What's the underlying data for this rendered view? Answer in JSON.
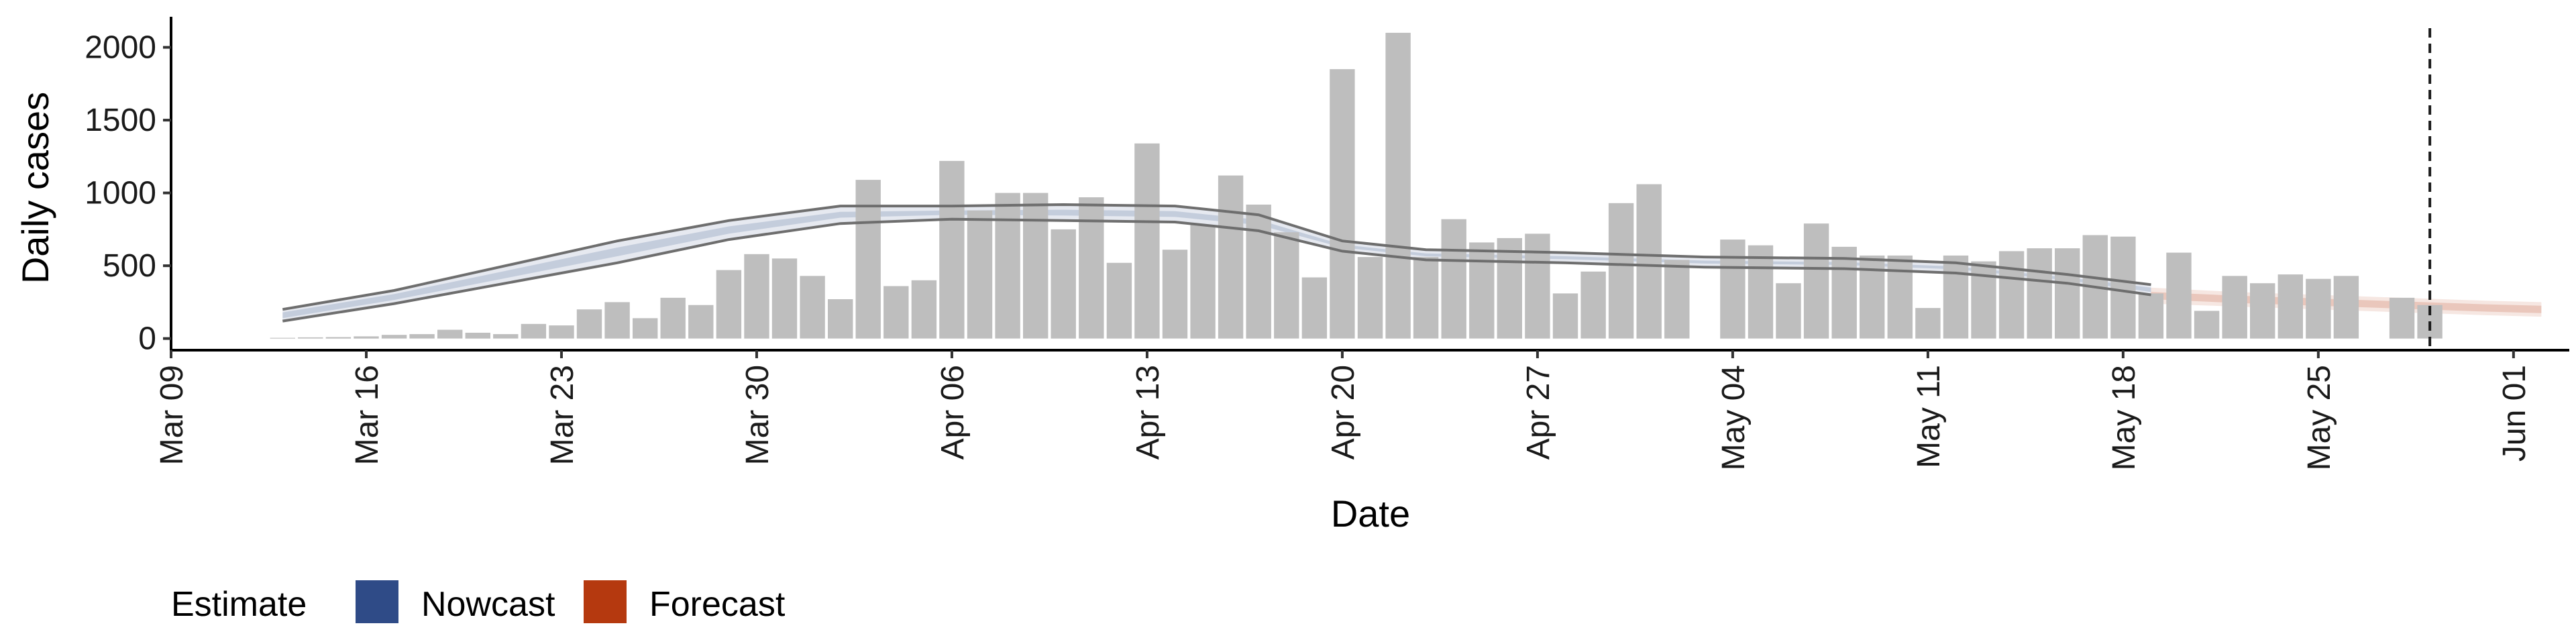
{
  "chart_data": {
    "type": "bar",
    "xlabel": "Date",
    "ylabel": "Daily cases",
    "xlim": [
      "2020-03-09",
      "2020-06-03"
    ],
    "ylim": [
      -80,
      2210
    ],
    "x_ticks": [
      {
        "date": "2020-03-09",
        "label": "Mar 09"
      },
      {
        "date": "2020-03-16",
        "label": "Mar 16"
      },
      {
        "date": "2020-03-23",
        "label": "Mar 23"
      },
      {
        "date": "2020-03-30",
        "label": "Mar 30"
      },
      {
        "date": "2020-04-06",
        "label": "Apr 06"
      },
      {
        "date": "2020-04-13",
        "label": "Apr 13"
      },
      {
        "date": "2020-04-20",
        "label": "Apr 20"
      },
      {
        "date": "2020-04-27",
        "label": "Apr 27"
      },
      {
        "date": "2020-05-04",
        "label": "May 04"
      },
      {
        "date": "2020-05-11",
        "label": "May 11"
      },
      {
        "date": "2020-05-18",
        "label": "May 18"
      },
      {
        "date": "2020-05-25",
        "label": "May 25"
      },
      {
        "date": "2020-06-01",
        "label": "Jun 01"
      }
    ],
    "y_ticks": [
      0,
      500,
      1000,
      1500,
      2000
    ],
    "bar_color": "#bebebe",
    "bars": {
      "start_date": "2020-03-13",
      "values": [
        5,
        8,
        10,
        15,
        25,
        30,
        60,
        40,
        30,
        100,
        90,
        200,
        250,
        140,
        280,
        230,
        470,
        580,
        550,
        430,
        270,
        1090,
        360,
        400,
        1220,
        880,
        1000,
        1000,
        750,
        970,
        520,
        1340,
        610,
        780,
        1120,
        920,
        730,
        420,
        1850,
        560,
        2100,
        560,
        820,
        660,
        690,
        720,
        310,
        460,
        930,
        1060,
        540,
        0,
        680,
        640,
        380,
        790,
        630,
        570,
        570,
        210,
        570,
        530,
        600,
        620,
        620,
        710,
        700,
        310,
        590,
        190,
        430,
        380,
        440,
        410,
        430,
        0,
        280,
        230
      ]
    },
    "bands": [
      {
        "name": "Nowcast",
        "color": "#2f4b87",
        "x": [
          "2020-03-13",
          "2020-03-17",
          "2020-03-21",
          "2020-03-25",
          "2020-03-29",
          "2020-04-02",
          "2020-04-06",
          "2020-04-10",
          "2020-04-14",
          "2020-04-17",
          "2020-04-20",
          "2020-04-23",
          "2020-04-28",
          "2020-05-03",
          "2020-05-08",
          "2020-05-12",
          "2020-05-16",
          "2020-05-19"
        ],
        "outer_lower": [
          120,
          240,
          380,
          520,
          680,
          790,
          820,
          810,
          800,
          740,
          600,
          540,
          520,
          490,
          480,
          450,
          380,
          300
        ],
        "outer_upper": [
          200,
          330,
          500,
          670,
          810,
          910,
          910,
          920,
          910,
          850,
          670,
          610,
          590,
          560,
          550,
          520,
          440,
          370
        ],
        "inner_lower": [
          140,
          265,
          415,
          565,
          720,
          830,
          850,
          845,
          835,
          780,
          625,
          565,
          545,
          515,
          505,
          475,
          400,
          320
        ],
        "inner_upper": [
          180,
          305,
          465,
          625,
          770,
          870,
          880,
          885,
          875,
          815,
          645,
          585,
          565,
          535,
          525,
          495,
          420,
          350
        ]
      },
      {
        "name": "Forecast",
        "color": "#b5390f",
        "x": [
          "2020-05-19",
          "2020-05-22",
          "2020-05-25",
          "2020-05-28",
          "2020-05-31",
          "2020-06-02"
        ],
        "outer_lower": [
          240,
          220,
          200,
          180,
          160,
          150
        ],
        "outer_upper": [
          350,
          320,
          300,
          280,
          260,
          250
        ],
        "inner_lower": [
          270,
          245,
          225,
          205,
          185,
          175
        ],
        "inner_upper": [
          320,
          295,
          275,
          255,
          235,
          225
        ]
      }
    ],
    "vline": {
      "date": "2020-05-29",
      "style": "dashed",
      "color": "#1a1a1a"
    },
    "legend": {
      "title": "Estimate",
      "position": "bottom-left",
      "items": [
        {
          "label": "Nowcast",
          "color": "#2f4b87"
        },
        {
          "label": "Forecast",
          "color": "#b5390f"
        }
      ]
    },
    "grid": false
  }
}
